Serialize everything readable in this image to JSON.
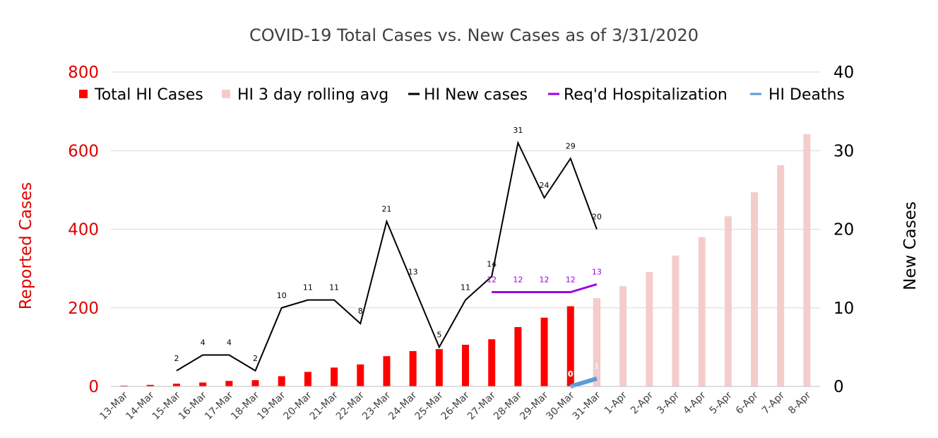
{
  "chart_data": {
    "type": "bar",
    "title": "COVID-19 Total Cases vs. New Cases as of 3/31/2020",
    "categories": [
      "13-Mar",
      "14-Mar",
      "15-Mar",
      "16-Mar",
      "17-Mar",
      "18-Mar",
      "19-Mar",
      "20-Mar",
      "21-Mar",
      "22-Mar",
      "23-Mar",
      "24-Mar",
      "25-Mar",
      "26-Mar",
      "27-Mar",
      "28-Mar",
      "29-Mar",
      "30-Mar",
      "31-Mar",
      "1-Apr",
      "2-Apr",
      "3-Apr",
      "4-Apr",
      "5-Apr",
      "6-Apr",
      "7-Apr",
      "8-Apr"
    ],
    "y_left": {
      "label": "Reported Cases",
      "range": [
        0,
        800
      ],
      "ticks": [
        "0",
        "200",
        "400",
        "600",
        "800"
      ],
      "color": "#e00000"
    },
    "y_right": {
      "label": "New Cases",
      "range": [
        0,
        40
      ],
      "ticks": [
        "0",
        "10",
        "20",
        "30",
        "40"
      ],
      "color": "#000000"
    },
    "grid": true,
    "legend_position": "top",
    "series": [
      {
        "name": "Total HI Cases",
        "kind": "bar",
        "axis": "left",
        "color": "#ff0000",
        "values": [
          2,
          4,
          7,
          10,
          14,
          16,
          26,
          37,
          48,
          56,
          77,
          90,
          95,
          106,
          120,
          151,
          175,
          204,
          224,
          null,
          null,
          null,
          null,
          null,
          null,
          null,
          null
        ]
      },
      {
        "name": "HI 3 day rolling avg",
        "kind": "bar",
        "axis": "left",
        "color": "#f4cccc",
        "values": [
          null,
          null,
          null,
          null,
          null,
          null,
          null,
          null,
          null,
          null,
          null,
          null,
          null,
          null,
          null,
          null,
          null,
          null,
          224,
          255,
          291,
          333,
          380,
          433,
          494,
          563,
          642
        ]
      },
      {
        "name": "HI New cases",
        "kind": "line",
        "axis": "right",
        "color": "#000000",
        "label_color": "#000000",
        "values": [
          null,
          null,
          2,
          4,
          4,
          2,
          10,
          11,
          11,
          8,
          21,
          13,
          5,
          11,
          14,
          31,
          24,
          29,
          20,
          null,
          null,
          null,
          null,
          null,
          null,
          null,
          null
        ],
        "labels": [
          null,
          null,
          "2",
          "4",
          "4",
          "2",
          "10",
          "11",
          "11",
          "8",
          "21",
          "13",
          "5",
          "11",
          "14",
          "31",
          "24",
          "29",
          "20",
          null,
          null,
          null,
          null,
          null,
          null,
          null,
          null
        ]
      },
      {
        "name": "Req'd Hospitalization",
        "kind": "line",
        "axis": "right",
        "color": "#9b00e6",
        "label_color": "#9b00e6",
        "values": [
          null,
          null,
          null,
          null,
          null,
          null,
          null,
          null,
          null,
          null,
          null,
          null,
          null,
          null,
          12,
          12,
          12,
          12,
          13,
          null,
          null,
          null,
          null,
          null,
          null,
          null,
          null
        ],
        "labels": [
          null,
          null,
          null,
          null,
          null,
          null,
          null,
          null,
          null,
          null,
          null,
          null,
          null,
          null,
          "12",
          "12",
          "12",
          "12",
          "13",
          null,
          null,
          null,
          null,
          null,
          null,
          null,
          null
        ]
      },
      {
        "name": "HI Deaths",
        "kind": "line",
        "axis": "right",
        "color": "#5b9bd5",
        "label_color": "#ffffff",
        "values": [
          null,
          null,
          null,
          null,
          null,
          null,
          null,
          null,
          null,
          null,
          null,
          null,
          null,
          null,
          null,
          null,
          null,
          0,
          1,
          null,
          null,
          null,
          null,
          null,
          null,
          null,
          null
        ],
        "labels": [
          null,
          null,
          null,
          null,
          null,
          null,
          null,
          null,
          null,
          null,
          null,
          null,
          null,
          null,
          null,
          null,
          null,
          "0",
          "1",
          null,
          null,
          null,
          null,
          null,
          null,
          null,
          null
        ]
      }
    ]
  }
}
